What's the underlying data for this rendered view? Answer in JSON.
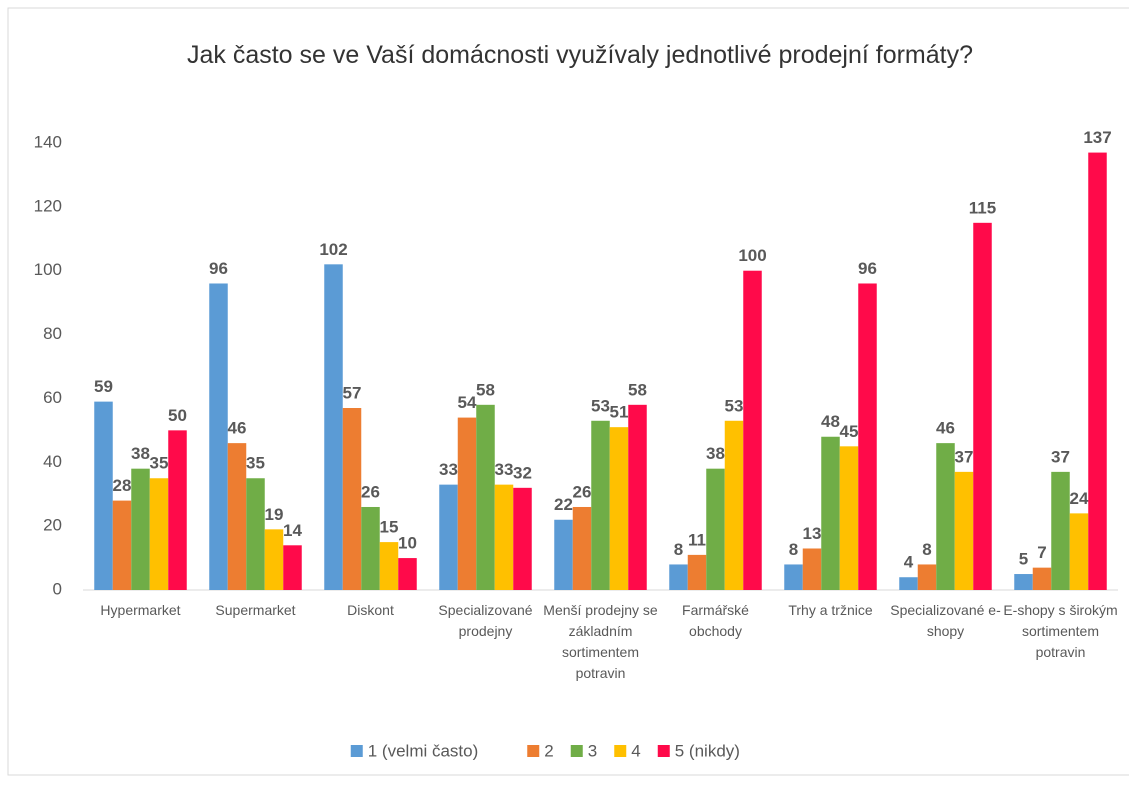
{
  "chart_data": {
    "type": "bar",
    "title": "Jak často se ve Vaší domácnosti využívaly jednotlivé prodejní formáty?",
    "categories": [
      "Hypermarket",
      "Supermarket",
      "Diskont",
      "Specializované prodejny",
      "Menší prodejny se základním sortimentem potravin",
      "Farmářské obchody",
      "Trhy a tržnice",
      "Specializované e-shopy",
      "E-shopy s širokým sortimentem potravin"
    ],
    "series": [
      {
        "name": "1 (velmi často)",
        "color": "#5b9bd5",
        "values": [
          59,
          96,
          102,
          33,
          22,
          8,
          8,
          4,
          5
        ]
      },
      {
        "name": "2",
        "color": "#ed7d31",
        "values": [
          28,
          46,
          57,
          54,
          26,
          11,
          13,
          8,
          7
        ]
      },
      {
        "name": "3",
        "color": "#70ad47",
        "values": [
          38,
          35,
          26,
          58,
          53,
          38,
          48,
          46,
          37
        ]
      },
      {
        "name": "4",
        "color": "#ffc000",
        "values": [
          35,
          19,
          15,
          33,
          51,
          53,
          45,
          37,
          24
        ]
      },
      {
        "name": "5 (nikdy)",
        "color": "#ff0a4a",
        "values": [
          50,
          14,
          10,
          32,
          58,
          100,
          96,
          115,
          137
        ]
      }
    ],
    "ylim": [
      0,
      140
    ],
    "yticks": [
      0,
      20,
      40,
      60,
      80,
      100,
      120,
      140
    ],
    "grid": false,
    "legend": "bottom"
  }
}
